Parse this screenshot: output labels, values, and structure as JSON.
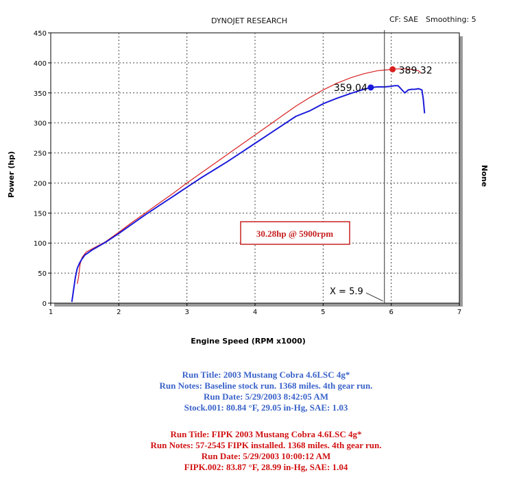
{
  "header": {
    "title": "DYNOJET RESEARCH",
    "cf": "CF: SAE",
    "smoothing": "Smoothing: 5"
  },
  "chart_data": {
    "type": "line",
    "xlabel": "Engine Speed (RPM x1000)",
    "ylabel": "Power (hp)",
    "right_label": "None",
    "xlim": [
      1,
      7
    ],
    "ylim": [
      0,
      450
    ],
    "xticks": [
      "1",
      "2",
      "3",
      "4",
      "5",
      "6",
      "7"
    ],
    "yticks": [
      "0",
      "50",
      "100",
      "150",
      "200",
      "250",
      "300",
      "350",
      "400",
      "450"
    ],
    "grid": true,
    "cursor": {
      "x": 5.9,
      "label": "X = 5.9"
    },
    "annotation": "30.28hp @ 5900rpm",
    "series": [
      {
        "color": "#1a1adb",
        "peak": {
          "x": 5.7,
          "y": 359.04,
          "label": "359.04"
        },
        "points": [
          [
            1.31,
            2
          ],
          [
            1.33,
            18
          ],
          [
            1.36,
            42
          ],
          [
            1.39,
            58
          ],
          [
            1.42,
            66
          ],
          [
            1.45,
            72
          ],
          [
            1.5,
            80
          ],
          [
            1.6,
            88
          ],
          [
            1.8,
            101
          ],
          [
            2.0,
            116
          ],
          [
            2.2,
            132
          ],
          [
            2.4,
            148
          ],
          [
            2.6,
            163
          ],
          [
            2.8,
            178
          ],
          [
            3.0,
            193
          ],
          [
            3.2,
            208
          ],
          [
            3.4,
            222
          ],
          [
            3.6,
            236
          ],
          [
            3.8,
            251
          ],
          [
            4.0,
            266
          ],
          [
            4.2,
            281
          ],
          [
            4.4,
            296
          ],
          [
            4.6,
            311
          ],
          [
            4.8,
            320
          ],
          [
            5.0,
            332
          ],
          [
            5.2,
            341
          ],
          [
            5.4,
            349
          ],
          [
            5.6,
            356
          ],
          [
            5.7,
            359
          ],
          [
            5.8,
            360
          ],
          [
            5.9,
            360
          ],
          [
            6.0,
            361
          ],
          [
            6.05,
            362
          ],
          [
            6.1,
            362
          ],
          [
            6.15,
            356
          ],
          [
            6.2,
            350
          ],
          [
            6.25,
            355
          ],
          [
            6.3,
            356
          ],
          [
            6.35,
            356
          ],
          [
            6.4,
            357
          ],
          [
            6.45,
            355
          ],
          [
            6.47,
            340
          ],
          [
            6.49,
            316
          ]
        ]
      },
      {
        "color": "#d81e1e",
        "peak": {
          "x": 6.02,
          "y": 389.32,
          "label": "389.32"
        },
        "points": [
          [
            1.39,
            32
          ],
          [
            1.41,
            44
          ],
          [
            1.43,
            64
          ],
          [
            1.46,
            76
          ],
          [
            1.52,
            85
          ],
          [
            1.6,
            90
          ],
          [
            1.8,
            102
          ],
          [
            2.0,
            118
          ],
          [
            2.2,
            135
          ],
          [
            2.4,
            151
          ],
          [
            2.6,
            167
          ],
          [
            2.8,
            183
          ],
          [
            3.0,
            200
          ],
          [
            3.2,
            216
          ],
          [
            3.4,
            232
          ],
          [
            3.6,
            248
          ],
          [
            3.8,
            264
          ],
          [
            4.0,
            280
          ],
          [
            4.2,
            296
          ],
          [
            4.4,
            312
          ],
          [
            4.6,
            328
          ],
          [
            4.8,
            342
          ],
          [
            5.0,
            355
          ],
          [
            5.2,
            366
          ],
          [
            5.4,
            375
          ],
          [
            5.6,
            382
          ],
          [
            5.8,
            387
          ],
          [
            5.9,
            388
          ],
          [
            6.0,
            389
          ],
          [
            6.1,
            390
          ],
          [
            6.2,
            390
          ],
          [
            6.3,
            389
          ],
          [
            6.4,
            387
          ],
          [
            6.44,
            383
          ]
        ]
      }
    ]
  },
  "notes": {
    "blue": [
      "Run Title: 2003 Mustang Cobra 4.6LSC 4g*",
      "Run Notes: Baseline stock run. 1368 miles. 4th gear run.",
      "Run Date: 5/29/2003 8:42:05 AM",
      "Stock.001: 80.84 °F, 29.05 in-Hg, SAE: 1.03"
    ],
    "red": [
      "Run Title: FIPK 2003 Mustang Cobra 4.6LSC 4g*",
      "Run Notes: 57-2545 FIPK installed. 1368 miles. 4th gear run.",
      "Run Date: 5/29/2003 10:00:12 AM",
      "FIPK.002: 83.87 °F, 28.99 in-Hg, SAE: 1.04"
    ]
  }
}
